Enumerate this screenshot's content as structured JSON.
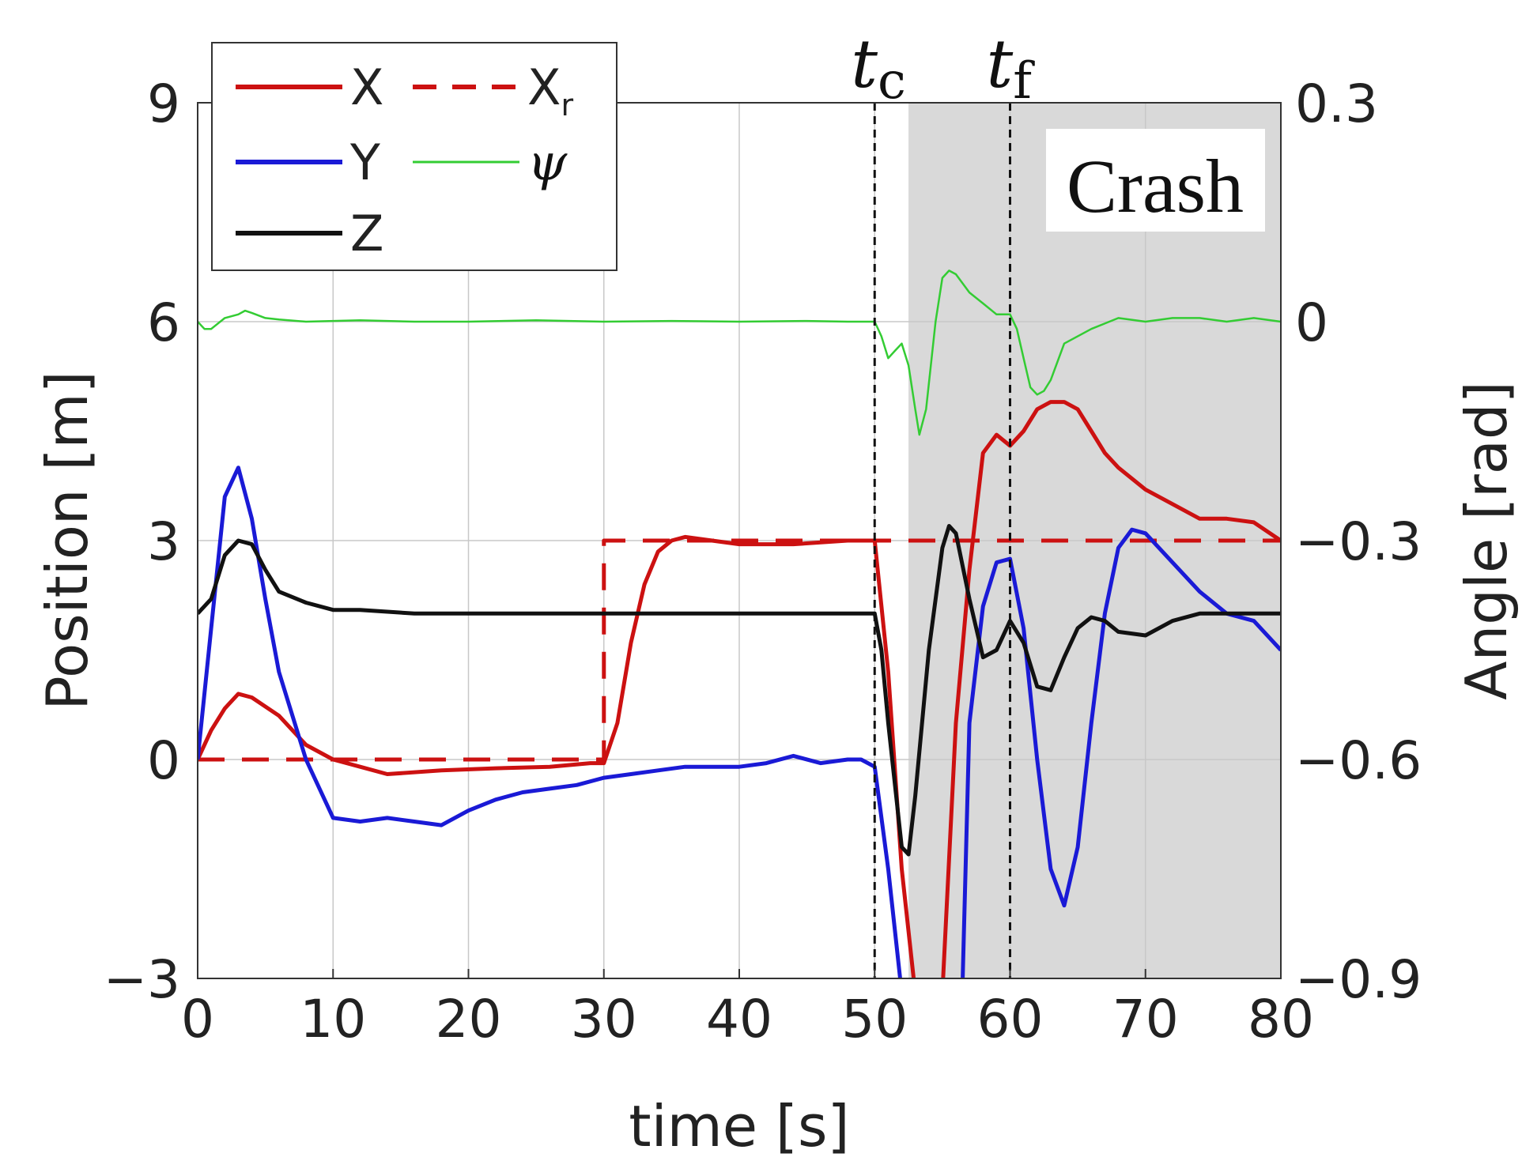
{
  "chart_data": {
    "type": "line",
    "xlabel": "time [s]",
    "ylabel_left": "Position [m]",
    "ylabel_right": "Angle [rad]",
    "xlim": [
      0,
      80
    ],
    "ylim_left": [
      -3,
      9
    ],
    "ylim_right": [
      -0.9,
      0.3
    ],
    "x_ticks": [
      0,
      10,
      20,
      30,
      40,
      50,
      60,
      70,
      80
    ],
    "y_ticks_left": [
      -3,
      0,
      3,
      6,
      9
    ],
    "y_ticks_left_labels": [
      "−3",
      "0",
      "3",
      "6",
      "9"
    ],
    "y_ticks_right": [
      -0.9,
      -0.6,
      -0.3,
      0,
      0.3
    ],
    "y_ticks_right_labels": [
      "−0.9",
      "−0.6",
      "−0.3",
      "0",
      "0.3"
    ],
    "grid": true,
    "legend_position": "top-left",
    "shaded_region": {
      "x_start": 52.5,
      "x_end": 80,
      "color": "#d9d9d9",
      "label": "Crash"
    },
    "vlines": [
      {
        "x": 50,
        "label": "t",
        "sub": "c"
      },
      {
        "x": 60,
        "label": "t",
        "sub": "f"
      }
    ],
    "series": [
      {
        "name": "X",
        "axis": "left",
        "color": "#cc1111",
        "dash": "solid",
        "width": 5,
        "x": [
          0,
          1,
          2,
          3,
          4,
          6,
          8,
          10,
          12,
          14,
          18,
          22,
          26,
          29,
          30,
          31,
          32,
          33,
          34,
          35,
          36,
          40,
          44,
          48,
          50,
          51,
          52,
          53,
          53.5,
          54,
          55,
          56,
          57,
          58,
          59,
          60,
          61,
          62,
          63,
          64,
          65,
          66,
          67,
          68,
          70,
          72,
          74,
          76,
          78,
          80
        ],
        "y": [
          0,
          0.4,
          0.7,
          0.9,
          0.85,
          0.6,
          0.2,
          0,
          -0.1,
          -0.2,
          -0.15,
          -0.12,
          -0.1,
          -0.05,
          -0.05,
          0.5,
          1.6,
          2.4,
          2.85,
          3.0,
          3.05,
          2.95,
          2.95,
          3.0,
          3.0,
          1.2,
          -1.5,
          -3.2,
          -3.3,
          -3.4,
          -3.2,
          0.5,
          2.6,
          4.2,
          4.45,
          4.3,
          4.5,
          4.8,
          4.9,
          4.9,
          4.8,
          4.5,
          4.2,
          4.0,
          3.7,
          3.5,
          3.3,
          3.3,
          3.25,
          3.0
        ]
      },
      {
        "name": "Xᵣ",
        "axis": "left",
        "color": "#cc1111",
        "dash": "dashed",
        "width": 5,
        "x": [
          0,
          30,
          30,
          80
        ],
        "y": [
          0,
          0,
          3,
          3
        ]
      },
      {
        "name": "Y",
        "axis": "left",
        "color": "#1a1ad6",
        "dash": "solid",
        "width": 5,
        "x": [
          0,
          1,
          2,
          3,
          4,
          5,
          6,
          8,
          10,
          12,
          14,
          16,
          18,
          20,
          22,
          24,
          26,
          28,
          30,
          32,
          34,
          36,
          38,
          40,
          42,
          44,
          46,
          48,
          49,
          50,
          51,
          52,
          52.5,
          53,
          54,
          55,
          55.5,
          56,
          56.5,
          57,
          58,
          59,
          60,
          61,
          62,
          63,
          64,
          65,
          66,
          67,
          68,
          69,
          70,
          72,
          74,
          76,
          78,
          80
        ],
        "y": [
          0,
          1.8,
          3.6,
          4.0,
          3.3,
          2.2,
          1.2,
          0,
          -0.8,
          -0.85,
          -0.8,
          -0.85,
          -0.9,
          -0.7,
          -0.55,
          -0.45,
          -0.4,
          -0.35,
          -0.25,
          -0.2,
          -0.15,
          -0.1,
          -0.1,
          -0.1,
          -0.05,
          0.05,
          -0.05,
          0,
          0,
          -0.1,
          -1.5,
          -3.2,
          -3.4,
          -3.4,
          -3.4,
          -3.4,
          -3.4,
          -3.3,
          -3.0,
          0.5,
          2.1,
          2.7,
          2.75,
          1.8,
          0,
          -1.5,
          -2.0,
          -1.2,
          0.5,
          2.0,
          2.9,
          3.15,
          3.1,
          2.7,
          2.3,
          2.0,
          1.9,
          1.5
        ]
      },
      {
        "name": "Z",
        "axis": "left",
        "color": "#111111",
        "dash": "solid",
        "width": 5,
        "x": [
          0,
          1,
          2,
          3,
          4,
          5,
          6,
          8,
          10,
          12,
          16,
          20,
          30,
          40,
          48,
          50,
          50.5,
          51,
          52,
          52.5,
          53,
          54,
          55,
          55.5,
          56,
          57,
          58,
          59,
          60,
          61,
          62,
          63,
          64,
          65,
          66,
          67,
          68,
          70,
          72,
          74,
          76,
          80
        ],
        "y": [
          2.0,
          2.2,
          2.8,
          3.0,
          2.95,
          2.6,
          2.3,
          2.15,
          2.05,
          2.05,
          2.0,
          2.0,
          2.0,
          2.0,
          2.0,
          2.0,
          1.5,
          0.5,
          -1.2,
          -1.3,
          -0.5,
          1.5,
          2.9,
          3.2,
          3.1,
          2.2,
          1.4,
          1.5,
          1.9,
          1.6,
          1.0,
          0.95,
          1.4,
          1.8,
          1.95,
          1.9,
          1.75,
          1.7,
          1.9,
          2.0,
          2.0,
          2.0
        ]
      },
      {
        "name": "ψ",
        "axis": "right",
        "color": "#33cc33",
        "dash": "solid",
        "width": 2.5,
        "x": [
          0,
          0.5,
          1,
          2,
          3,
          3.5,
          4,
          5,
          6,
          8,
          12,
          16,
          20,
          25,
          30,
          35,
          40,
          45,
          48,
          50,
          50.5,
          51,
          51.5,
          52,
          52.5,
          53,
          53.3,
          53.8,
          54.5,
          55,
          55.5,
          56,
          57,
          58,
          59,
          60,
          60.5,
          61,
          61.5,
          62,
          62.5,
          63,
          64,
          66,
          68,
          70,
          72,
          74,
          76,
          78,
          80
        ],
        "y": [
          0,
          -0.01,
          -0.01,
          0.005,
          0.01,
          0.015,
          0.012,
          0.005,
          0.003,
          0.0,
          0.002,
          0.0,
          0.0,
          0.002,
          0.0,
          0.001,
          0.0,
          0.001,
          0.0,
          0.0,
          -0.02,
          -0.05,
          -0.04,
          -0.03,
          -0.06,
          -0.12,
          -0.155,
          -0.12,
          0.0,
          0.06,
          0.07,
          0.065,
          0.04,
          0.025,
          0.01,
          0.01,
          -0.01,
          -0.05,
          -0.09,
          -0.1,
          -0.095,
          -0.08,
          -0.03,
          -0.01,
          0.005,
          0.0,
          0.005,
          0.005,
          0.0,
          0.005,
          0.0
        ]
      }
    ],
    "legend_items": [
      {
        "label": "X",
        "sub": ""
      },
      {
        "label": "X",
        "sub": "r"
      },
      {
        "label": "Y",
        "sub": ""
      },
      {
        "label": "ψ",
        "sub": ""
      },
      {
        "label": "Z",
        "sub": ""
      }
    ]
  }
}
